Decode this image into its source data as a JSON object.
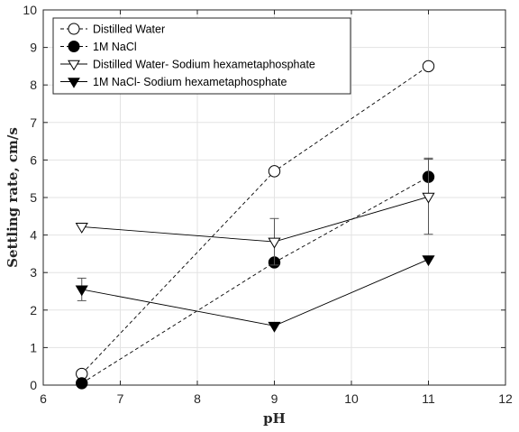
{
  "chart_data": {
    "type": "line",
    "title": "",
    "xlabel": "pH",
    "ylabel": "Settling rate, cm/s",
    "xlim": [
      6,
      12
    ],
    "ylim": [
      0,
      10
    ],
    "xticks": [
      "6",
      "7",
      "8",
      "9",
      "10",
      "11",
      "12"
    ],
    "yticks": [
      "0",
      "1",
      "2",
      "3",
      "4",
      "5",
      "6",
      "7",
      "8",
      "9",
      "10"
    ],
    "grid": true,
    "legend_position": "top-left",
    "series": [
      {
        "name": "Distilled Water",
        "marker": "circle-open",
        "line": "dashed",
        "x": [
          6.5,
          9,
          11
        ],
        "y": [
          0.3,
          5.7,
          8.5
        ],
        "err": [
          0,
          0,
          0
        ]
      },
      {
        "name": "1M NaCl",
        "marker": "circle-filled",
        "line": "dashed",
        "x": [
          6.5,
          9,
          11
        ],
        "y": [
          0.05,
          3.27,
          5.55
        ],
        "err": [
          0,
          0,
          0.5
        ]
      },
      {
        "name": "Distilled Water- Sodium hexametaphosphate",
        "marker": "triangle-open",
        "line": "solid",
        "x": [
          6.5,
          9,
          11
        ],
        "y": [
          4.22,
          3.82,
          5.02
        ],
        "err": [
          0,
          0.62,
          1.0
        ]
      },
      {
        "name": "1M NaCl- Sodium hexametaphosphate",
        "marker": "triangle-filled",
        "line": "solid",
        "x": [
          6.5,
          9,
          11
        ],
        "y": [
          2.55,
          1.58,
          3.35
        ],
        "err": [
          0.3,
          0,
          0
        ]
      }
    ]
  }
}
